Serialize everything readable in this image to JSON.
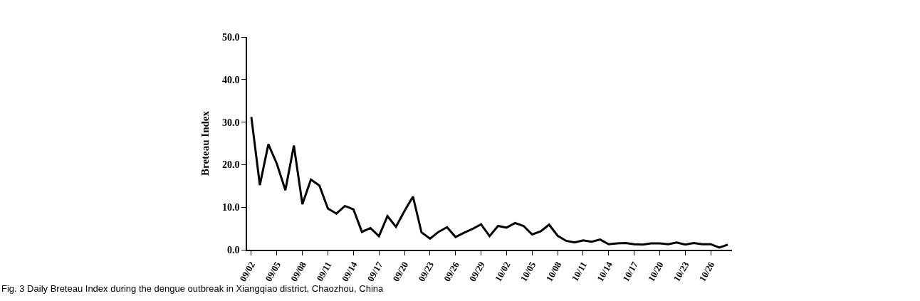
{
  "chart_data": {
    "type": "line",
    "ylabel": "Breteau Index",
    "categories": [
      "09/02",
      null,
      null,
      "09/05",
      null,
      null,
      "09/08",
      null,
      null,
      "09/11",
      null,
      null,
      "09/14",
      null,
      null,
      "09/17",
      null,
      null,
      "09/20",
      null,
      null,
      "09/23",
      null,
      null,
      "09/26",
      null,
      null,
      "09/29",
      null,
      null,
      "10/02",
      null,
      null,
      "10/05",
      null,
      null,
      "10/08",
      null,
      null,
      "10/11",
      null,
      null,
      "10/14",
      null,
      null,
      "10/17",
      null,
      null,
      "10/20",
      null,
      null,
      "10/23",
      null,
      null,
      "10/26",
      null,
      null
    ],
    "series": [
      {
        "color": "#000000",
        "values": [
          31.2,
          15.2,
          24.8,
          20.2,
          14.0,
          24.5,
          10.7,
          16.5,
          15.1,
          9.7,
          8.5,
          10.3,
          9.5,
          4.2,
          5.1,
          3.2,
          7.9,
          5.4,
          9.1,
          12.5,
          4.1,
          2.6,
          4.2,
          5.3,
          3.0,
          4.0,
          4.9,
          6.0,
          3.2,
          5.6,
          5.2,
          6.3,
          5.6,
          3.6,
          4.3,
          5.9,
          3.3,
          2.1,
          1.7,
          2.2,
          1.9,
          2.4,
          1.3,
          1.5,
          1.6,
          1.3,
          1.2,
          1.5,
          1.5,
          1.3,
          1.7,
          1.2,
          1.6,
          1.3,
          1.3,
          0.5,
          1.2
        ]
      }
    ],
    "ylim": [
      0,
      50
    ],
    "yticks": [
      {
        "value": 0,
        "label": "0.0"
      },
      {
        "value": 10,
        "label": "10.0"
      },
      {
        "value": 20,
        "label": "20.0"
      },
      {
        "value": 30,
        "label": "30.0"
      },
      {
        "value": 40,
        "label": "40.0"
      },
      {
        "value": 50,
        "label": "50.0"
      }
    ],
    "legend": false,
    "marker": "none",
    "line_style": "solid",
    "annotations": [
      "Fig. 3 Daily Breteau Index during the dengue outbreak in Xiangqiao district, Chaozhou, China"
    ]
  }
}
